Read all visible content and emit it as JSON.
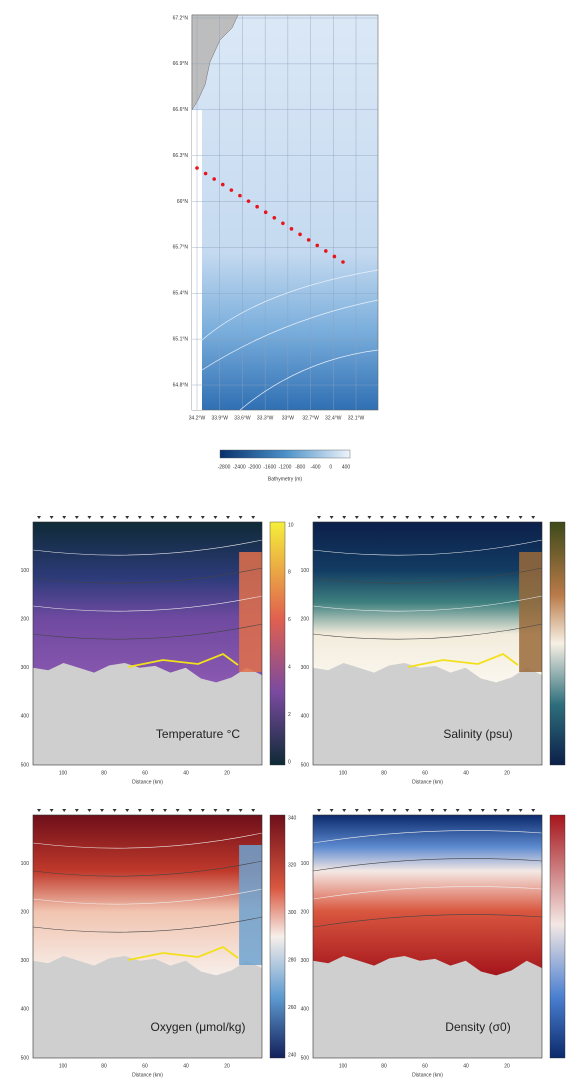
{
  "map": {
    "lat_labels": [
      "67.2°N",
      "66.9°N",
      "66.6°N",
      "66.3°N",
      "66°N",
      "65.7°N",
      "65.4°N",
      "65.1°N",
      "64.8°N"
    ],
    "lon_labels": [
      "34.2°W",
      "33.9°W",
      "33.6°W",
      "33.3°W",
      "33°W",
      "32.7°W",
      "32.4°W",
      "32.1°W"
    ]
  },
  "bathymetry_colorbar": {
    "ticks": [
      "-2800",
      "-2400",
      "-2000",
      "-1600",
      "-1200",
      "-800",
      "-400",
      "0",
      "400"
    ],
    "label": "Bathymetry (m)"
  },
  "depth_ticks": [
    "100",
    "200",
    "300",
    "400",
    "500"
  ],
  "distance_ticks": [
    "100",
    "80",
    "60",
    "40",
    "20"
  ],
  "panels": [
    {
      "title": "Temperature °C",
      "x_label": "Distance (km)",
      "colorbar_ticks": [
        "10",
        "8",
        "6",
        "4",
        "2",
        "0"
      ]
    },
    {
      "title": "Salinity (psu)",
      "x_label": "Distance (km)"
    },
    {
      "title": "Oxygen (μmol/kg)",
      "x_label": "Distance (km)",
      "colorbar_ticks": [
        "340",
        "320",
        "300",
        "280",
        "260",
        "240"
      ]
    },
    {
      "title": "Density (σ0)",
      "x_label": "Distance (km)"
    }
  ]
}
